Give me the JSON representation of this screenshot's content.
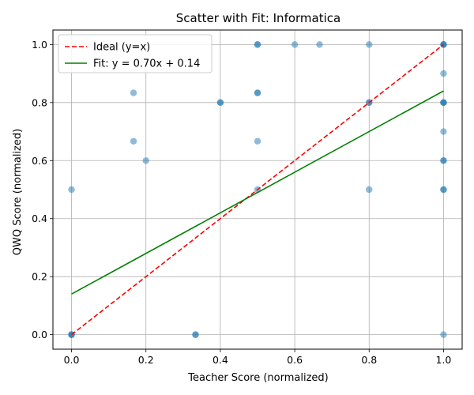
{
  "chart_data": {
    "type": "scatter",
    "title": "Scatter with Fit: Informatica",
    "xlabel": "Teacher Score (normalized)",
    "ylabel": "QWQ Score (normalized)",
    "xlim": [
      -0.05,
      1.05
    ],
    "ylim": [
      -0.05,
      1.05
    ],
    "xticks": [
      0.0,
      0.2,
      0.4,
      0.6,
      0.8,
      1.0
    ],
    "yticks": [
      0.0,
      0.2,
      0.4,
      0.6,
      0.8,
      1.0
    ],
    "xtick_labels": [
      "0.0",
      "0.2",
      "0.4",
      "0.6",
      "0.8",
      "1.0"
    ],
    "ytick_labels": [
      "0.0",
      "0.2",
      "0.4",
      "0.6",
      "0.8",
      "1.0"
    ],
    "grid": true,
    "legend_position": "top-left",
    "points_color": "#1f77b4",
    "points": [
      {
        "x": 0.0,
        "y": 0.0
      },
      {
        "x": 0.0,
        "y": 0.0
      },
      {
        "x": 0.0,
        "y": 0.0
      },
      {
        "x": 0.0,
        "y": 0.5
      },
      {
        "x": 0.1667,
        "y": 0.8333
      },
      {
        "x": 0.1667,
        "y": 0.6667
      },
      {
        "x": 0.2,
        "y": 0.6
      },
      {
        "x": 0.3333,
        "y": 0.0
      },
      {
        "x": 0.3333,
        "y": 0.0
      },
      {
        "x": 0.4,
        "y": 0.8
      },
      {
        "x": 0.4,
        "y": 0.8
      },
      {
        "x": 0.5,
        "y": 1.0
      },
      {
        "x": 0.5,
        "y": 1.0
      },
      {
        "x": 0.5,
        "y": 0.8333
      },
      {
        "x": 0.5,
        "y": 0.8333
      },
      {
        "x": 0.5,
        "y": 0.6667
      },
      {
        "x": 0.5,
        "y": 0.5
      },
      {
        "x": 0.6,
        "y": 1.0
      },
      {
        "x": 0.6667,
        "y": 1.0
      },
      {
        "x": 0.8,
        "y": 1.0
      },
      {
        "x": 0.8,
        "y": 0.8
      },
      {
        "x": 0.8,
        "y": 0.8
      },
      {
        "x": 0.8,
        "y": 0.5
      },
      {
        "x": 1.0,
        "y": 1.0
      },
      {
        "x": 1.0,
        "y": 1.0
      },
      {
        "x": 1.0,
        "y": 1.0
      },
      {
        "x": 1.0,
        "y": 0.9
      },
      {
        "x": 1.0,
        "y": 0.8
      },
      {
        "x": 1.0,
        "y": 0.8
      },
      {
        "x": 1.0,
        "y": 0.8
      },
      {
        "x": 1.0,
        "y": 0.7
      },
      {
        "x": 1.0,
        "y": 0.6
      },
      {
        "x": 1.0,
        "y": 0.6
      },
      {
        "x": 1.0,
        "y": 0.5
      },
      {
        "x": 1.0,
        "y": 0.5
      },
      {
        "x": 1.0,
        "y": 0.0
      }
    ],
    "lines": [
      {
        "name": "Ideal (y=x)",
        "color": "#ff0000",
        "style": "dashed",
        "x": [
          0.0,
          1.0
        ],
        "y": [
          0.0,
          1.0
        ]
      },
      {
        "name": "Fit: y = 0.70x + 0.14",
        "color": "#008000",
        "style": "solid",
        "x": [
          0.0,
          1.0
        ],
        "y": [
          0.14,
          0.84
        ]
      }
    ]
  }
}
